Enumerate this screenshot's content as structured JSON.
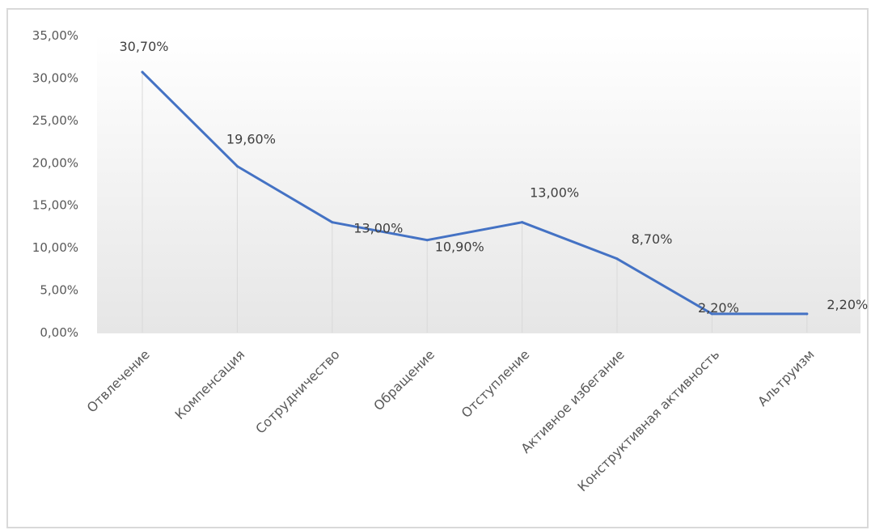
{
  "chart_data": {
    "type": "line",
    "title": "",
    "xlabel": "",
    "ylabel": "",
    "categories": [
      "Отвлечение",
      "Компенсация",
      "Сотрудничество",
      "Обращение",
      "Отступление",
      "Активное избегание",
      "Конструктивная  активность",
      "Альтруизм"
    ],
    "series": [
      {
        "values": [
          30.7,
          19.6,
          13.0,
          10.9,
          13.0,
          8.7,
          2.2,
          2.2
        ]
      }
    ],
    "data_labels": [
      "30,70%",
      "19,60%",
      "13,00%",
      "10,90%",
      "13,00%",
      "8,70%",
      "2,20%",
      "2,20%"
    ],
    "y_ticks": [
      "0,00%",
      "5,00%",
      "10,00%",
      "15,00%",
      "20,00%",
      "25,00%",
      "30,00%",
      "35,00%"
    ],
    "y_tick_values": [
      0,
      5,
      10,
      15,
      20,
      25,
      30,
      35
    ],
    "ylim": [
      0,
      35
    ],
    "grid": false,
    "drop_lines": true,
    "legend": "none",
    "colors": {
      "line": "#4472c4",
      "drop_line": "#d9d9d9",
      "text": "#595959",
      "plot_gradient_top": "#ffffff",
      "plot_gradient_bottom": "#e6e6e6"
    }
  }
}
